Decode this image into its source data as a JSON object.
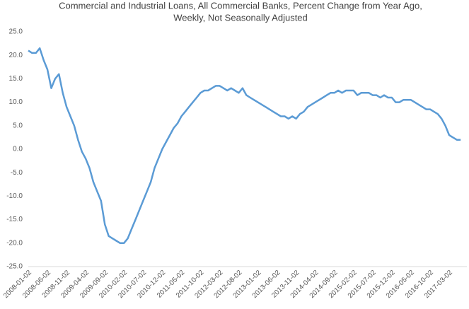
{
  "chart_data": {
    "type": "line",
    "title": [
      "Commercial and Industrial Loans, All Commercial Banks, Percent Change from Year Ago,",
      "Weekly, Not Seasonally Adjusted"
    ],
    "categories": [
      "2008-01-02",
      null,
      null,
      null,
      null,
      "2008-06-02",
      null,
      null,
      null,
      null,
      "2008-11-02",
      null,
      null,
      null,
      null,
      "2009-04-02",
      null,
      null,
      null,
      null,
      "2009-09-02",
      null,
      null,
      null,
      null,
      "2010-02-02",
      null,
      null,
      null,
      null,
      "2010-07-02",
      null,
      null,
      null,
      null,
      "2010-12-02",
      null,
      null,
      null,
      null,
      "2011-05-02",
      null,
      null,
      null,
      null,
      "2011-10-02",
      null,
      null,
      null,
      null,
      "2012-03-02",
      null,
      null,
      null,
      null,
      "2012-08-02",
      null,
      null,
      null,
      null,
      "2013-01-02",
      null,
      null,
      null,
      null,
      "2013-06-02",
      null,
      null,
      null,
      null,
      "2013-11-02",
      null,
      null,
      null,
      null,
      "2014-04-02",
      null,
      null,
      null,
      null,
      "2014-09-02",
      null,
      null,
      null,
      null,
      "2015-02-02",
      null,
      null,
      null,
      null,
      "2015-07-02",
      null,
      null,
      null,
      null,
      "2015-12-02",
      null,
      null,
      null,
      null,
      "2016-05-02",
      null,
      null,
      null,
      null,
      "2016-10-02",
      null,
      null,
      null,
      null,
      "2017-03-02",
      null,
      null,
      null
    ],
    "values": [
      21,
      20.5,
      20.5,
      21.5,
      19,
      17,
      13,
      15,
      16,
      12,
      9,
      7,
      5,
      2,
      -0.5,
      -2,
      -4,
      -7,
      -9,
      -11,
      -16,
      -18.5,
      -19,
      -19.5,
      -20,
      -20,
      -19,
      -17,
      -15,
      -13,
      -11,
      -9,
      -7,
      -4,
      -2,
      0,
      1.5,
      3,
      4.5,
      5.5,
      7,
      8,
      9,
      10,
      11,
      12,
      12.5,
      12.5,
      13,
      13.5,
      13.5,
      13,
      12.5,
      13,
      12.5,
      12,
      13,
      11.5,
      11,
      10.5,
      10,
      9.5,
      9,
      8.5,
      8,
      7.5,
      7,
      7,
      6.5,
      7,
      6.5,
      7.5,
      8,
      9,
      9.5,
      10,
      10.5,
      11,
      11.5,
      12,
      12,
      12.5,
      12,
      12.5,
      12.5,
      12.5,
      11.5,
      12,
      12,
      12,
      11.5,
      11.5,
      11,
      11.5,
      11,
      11,
      10,
      10,
      10.5,
      10.5,
      10.5,
      10,
      9.5,
      9,
      8.5,
      8.5,
      8,
      7.5,
      6.5,
      5,
      3,
      2.5,
      2,
      2
    ],
    "color": "#5b9bd5",
    "ylim": [
      -25,
      25
    ],
    "yticks": [
      {
        "value": -25,
        "label": "-25.0"
      },
      {
        "value": -20,
        "label": "-20.0"
      },
      {
        "value": -15,
        "label": "-15.0"
      },
      {
        "value": -10,
        "label": "-10.0"
      },
      {
        "value": -5,
        "label": "-5.0"
      },
      {
        "value": 0,
        "label": "0.0"
      },
      {
        "value": 5,
        "label": "5.0"
      },
      {
        "value": 10,
        "label": "10.0"
      },
      {
        "value": 15,
        "label": "15.0"
      },
      {
        "value": 20,
        "label": "20.0"
      },
      {
        "value": 25,
        "label": "25.0"
      }
    ],
    "grid": false
  }
}
